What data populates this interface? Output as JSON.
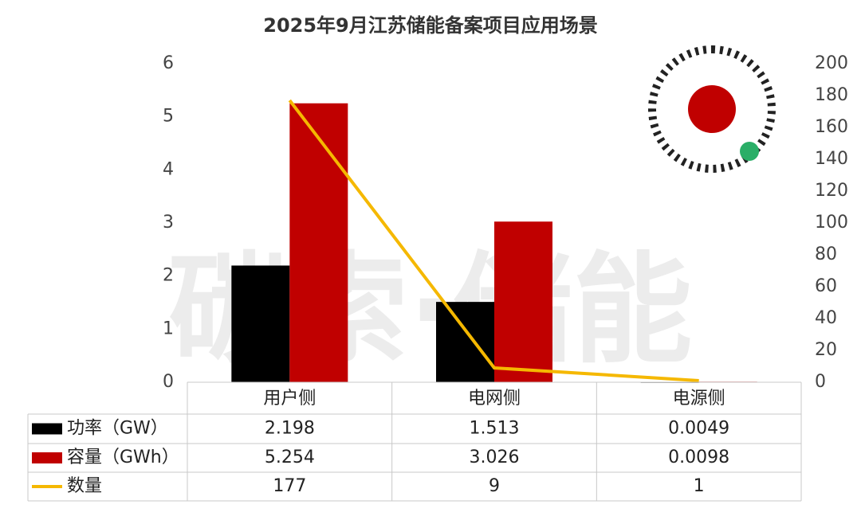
{
  "chart_data": {
    "type": "bar",
    "title": "2025年9月江苏储能备案项目应用场景",
    "watermark": "碳索·储能",
    "categories": [
      "用户侧",
      "电网侧",
      "电源侧"
    ],
    "series": [
      {
        "name": "功率（GW）",
        "color": "#000000",
        "values": [
          2.198,
          1.513,
          0.0049
        ]
      },
      {
        "name": "容量（GWh）",
        "color": "#c00000",
        "values": [
          5.254,
          3.026,
          0.0098
        ]
      },
      {
        "name": "数量",
        "color": "#f5b800",
        "type": "line",
        "axis": "y2",
        "values": [
          177,
          9,
          1
        ]
      }
    ],
    "ylim": [
      0,
      6
    ],
    "yticks": [
      0,
      1,
      2,
      3,
      4,
      5,
      6
    ],
    "y2lim": [
      0,
      200
    ],
    "y2ticks": [
      0,
      20,
      40,
      60,
      80,
      100,
      120,
      140,
      160,
      180,
      200
    ],
    "grid": false,
    "data_table": true
  }
}
